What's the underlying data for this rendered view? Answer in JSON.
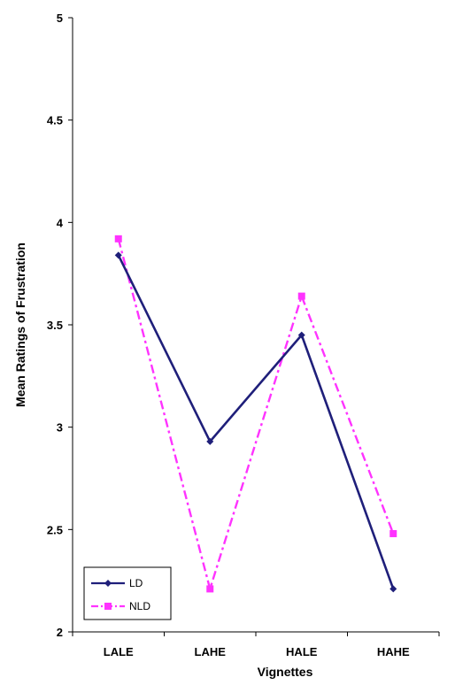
{
  "chart_data": {
    "type": "line",
    "categories": [
      "LALE",
      "LAHE",
      "HALE",
      "HAHE"
    ],
    "series": [
      {
        "name": "LD",
        "values": [
          3.84,
          2.93,
          3.45,
          2.21
        ],
        "color": "#1f1f7a",
        "dash": "solid",
        "marker": "diamond"
      },
      {
        "name": "NLD",
        "values": [
          3.92,
          2.21,
          3.64,
          2.48
        ],
        "color": "#ff33ff",
        "dash": "dash-dot",
        "marker": "square"
      }
    ],
    "yticks": [
      "2",
      "2.5",
      "3",
      "3.5",
      "4",
      "4.5",
      "5"
    ],
    "ylim": [
      2,
      5
    ],
    "xlabel": "Vignettes",
    "ylabel": "Mean Ratings of Frustration",
    "grid": false,
    "legend_position": "bottom-left"
  }
}
